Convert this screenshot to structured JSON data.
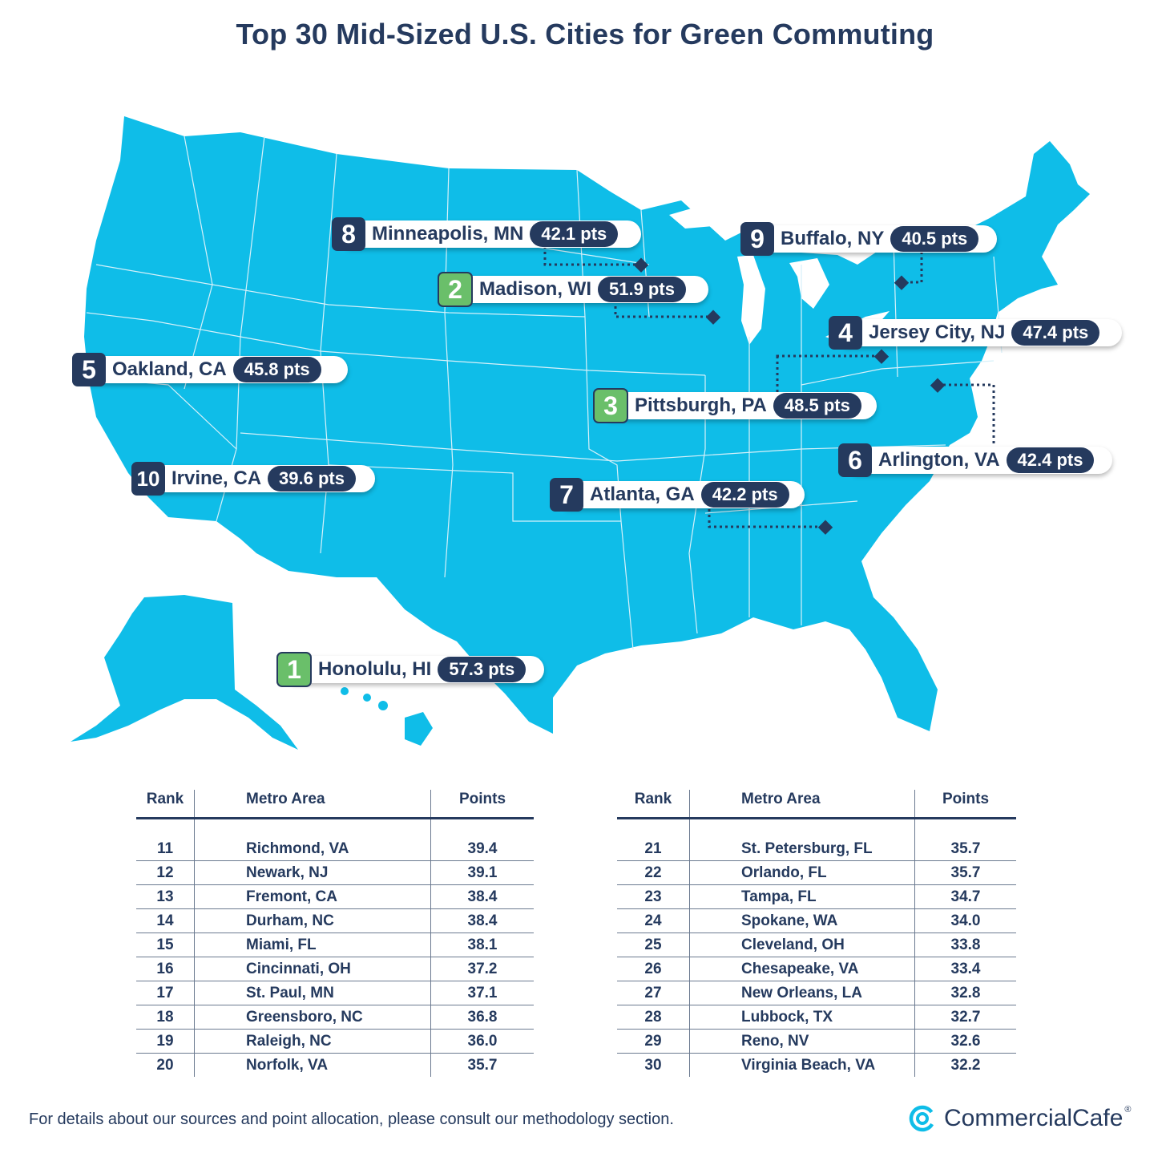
{
  "title": "Top 30 Mid-Sized U.S. Cities for Green Commuting",
  "colors": {
    "land": "#0fbde8",
    "navy": "#253a5e",
    "green": "#6abf6a",
    "border": "#d7f1fa"
  },
  "top10": [
    {
      "rank": "1",
      "city": "Honolulu, HI",
      "points": "57.3 pts",
      "style": "green"
    },
    {
      "rank": "2",
      "city": "Madison, WI",
      "points": "51.9 pts",
      "style": "green"
    },
    {
      "rank": "3",
      "city": "Pittsburgh, PA",
      "points": "48.5 pts",
      "style": "green"
    },
    {
      "rank": "4",
      "city": "Jersey City, NJ",
      "points": "47.4 pts",
      "style": "navy"
    },
    {
      "rank": "5",
      "city": "Oakland, CA",
      "points": "45.8 pts",
      "style": "navy"
    },
    {
      "rank": "6",
      "city": "Arlington, VA",
      "points": "42.4 pts",
      "style": "navy"
    },
    {
      "rank": "7",
      "city": "Atlanta, GA",
      "points": "42.2 pts",
      "style": "navy"
    },
    {
      "rank": "8",
      "city": "Minneapolis, MN",
      "points": "42.1 pts",
      "style": "navy"
    },
    {
      "rank": "9",
      "city": "Buffalo, NY",
      "points": "40.5 pts",
      "style": "navy"
    },
    {
      "rank": "10",
      "city": "Irvine, CA",
      "points": "39.6 pts",
      "style": "navy"
    }
  ],
  "table_headers": {
    "rank": "Rank",
    "metro": "Metro Area",
    "points": "Points"
  },
  "table_left": [
    {
      "rank": "11",
      "metro": "Richmond, VA",
      "points": "39.4"
    },
    {
      "rank": "12",
      "metro": "Newark, NJ",
      "points": "39.1"
    },
    {
      "rank": "13",
      "metro": "Fremont, CA",
      "points": "38.4"
    },
    {
      "rank": "14",
      "metro": "Durham, NC",
      "points": "38.4"
    },
    {
      "rank": "15",
      "metro": "Miami, FL",
      "points": "38.1"
    },
    {
      "rank": "16",
      "metro": "Cincinnati, OH",
      "points": "37.2"
    },
    {
      "rank": "17",
      "metro": "St. Paul, MN",
      "points": "37.1"
    },
    {
      "rank": "18",
      "metro": "Greensboro, NC",
      "points": "36.8"
    },
    {
      "rank": "19",
      "metro": "Raleigh, NC",
      "points": "36.0"
    },
    {
      "rank": "20",
      "metro": "Norfolk, VA",
      "points": "35.7"
    }
  ],
  "table_right": [
    {
      "rank": "21",
      "metro": "St. Petersburg, FL",
      "points": "35.7"
    },
    {
      "rank": "22",
      "metro": "Orlando, FL",
      "points": "35.7"
    },
    {
      "rank": "23",
      "metro": "Tampa, FL",
      "points": "34.7"
    },
    {
      "rank": "24",
      "metro": "Spokane, WA",
      "points": "34.0"
    },
    {
      "rank": "25",
      "metro": "Cleveland, OH",
      "points": "33.8"
    },
    {
      "rank": "26",
      "metro": "Chesapeake, VA",
      "points": "33.4"
    },
    {
      "rank": "27",
      "metro": "New Orleans, LA",
      "points": "32.8"
    },
    {
      "rank": "28",
      "metro": "Lubbock, TX",
      "points": "32.7"
    },
    {
      "rank": "29",
      "metro": "Reno, NV",
      "points": "32.6"
    },
    {
      "rank": "30",
      "metro": "Virginia Beach, VA",
      "points": "32.2"
    }
  ],
  "footnote": "For details about our sources and point allocation, please consult our methodology section.",
  "brand": "CommercialCafe",
  "brand_mark": "®"
}
